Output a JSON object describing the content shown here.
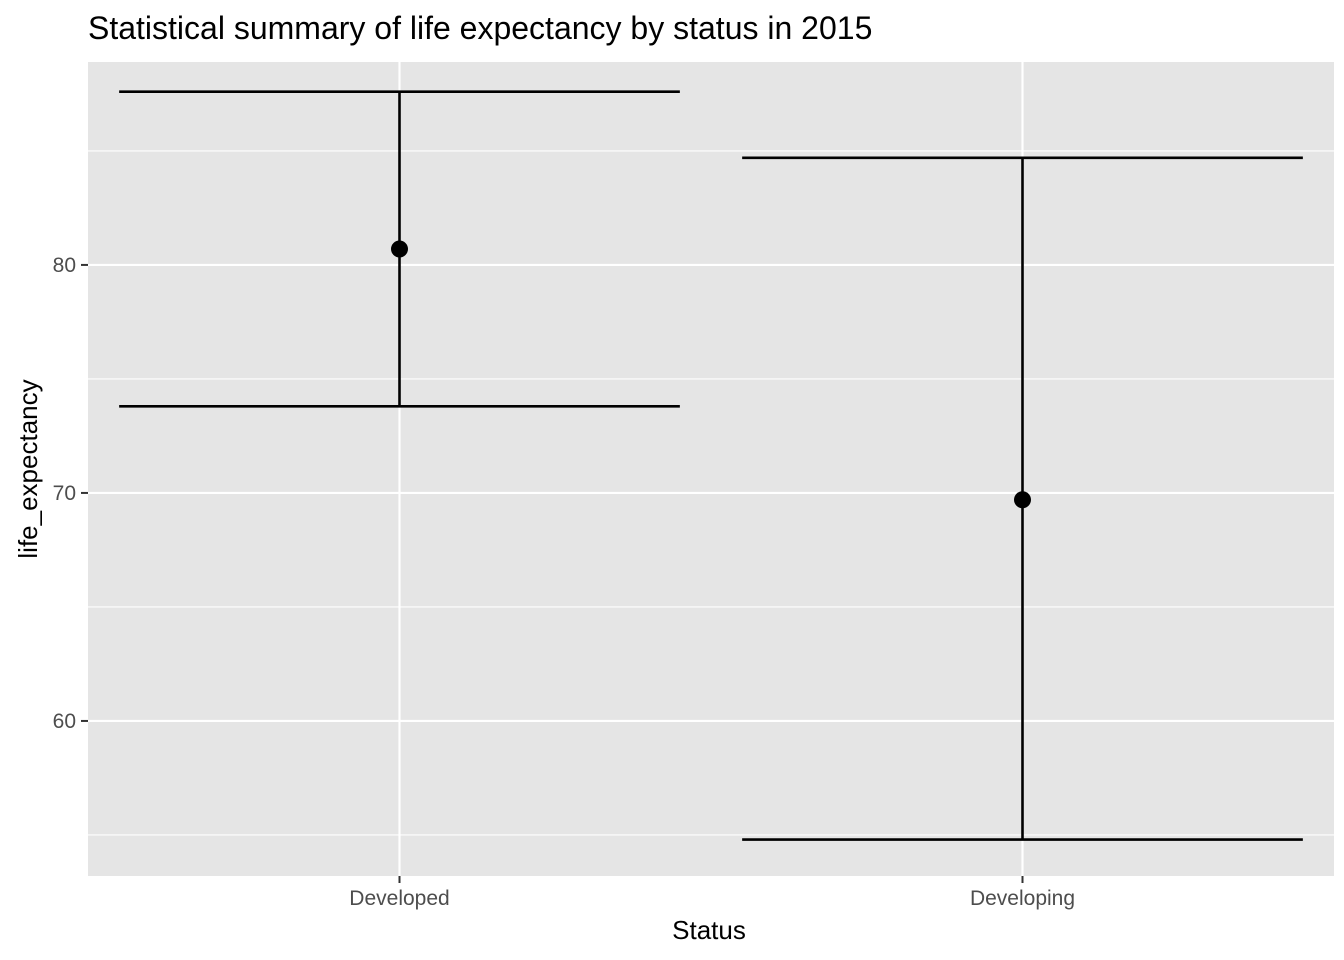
{
  "chart_data": {
    "type": "errorbar",
    "title": "Statistical summary of life expectancy by status in 2015",
    "xlabel": "Status",
    "ylabel": "life_expectancy",
    "categories": [
      "Developed",
      "Developing"
    ],
    "points": [
      {
        "category": "Developed",
        "mean": 80.7,
        "ymin": 73.8,
        "ymax": 87.6
      },
      {
        "category": "Developing",
        "mean": 69.7,
        "ymin": 54.8,
        "ymax": 84.7
      }
    ],
    "ylim": [
      53.2,
      88.9
    ],
    "yticks": [
      60,
      70,
      80
    ],
    "ytick_labels": [
      "60",
      "70",
      "80"
    ],
    "y_minor_gridlines": [
      55,
      65,
      75,
      85
    ],
    "grid": true,
    "legend": "none",
    "colors": {
      "panel_background": "#e5e5e5",
      "gridline": "#ffffff",
      "mark": "#000000",
      "tick_label": "#4d4d4d"
    }
  }
}
